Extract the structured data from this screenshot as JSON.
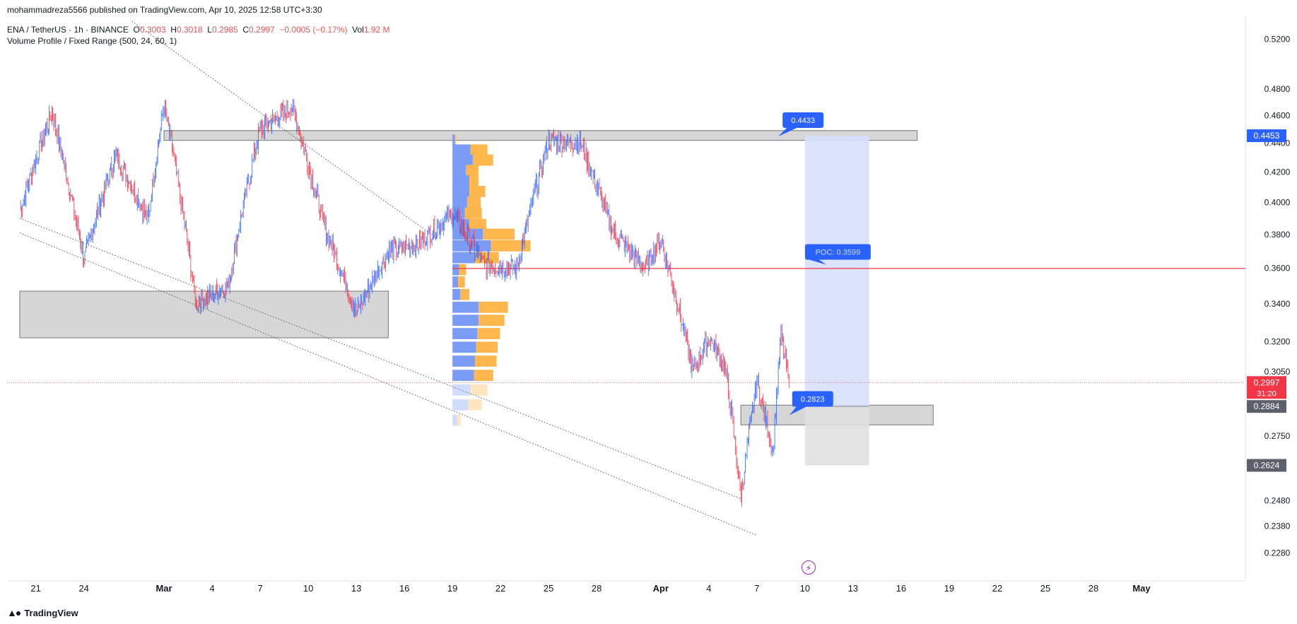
{
  "publisher_line": "mohammadreza5566 published on TradingView.com, Apr 10, 2025 12:58 UTC+3:30",
  "legend": {
    "symbol": "ENA / TetherUS · 1h · BINANCE",
    "o_label": "O",
    "o": "0.3003",
    "h_label": "H",
    "h": "0.3018",
    "l_label": "L",
    "l": "0.2985",
    "c_label": "C",
    "c": "0.2997",
    "change": "−0.0005 (−0.17%)",
    "vol_label": "Vol",
    "vol": "1.92 M",
    "indicator": "Volume Profile / Fixed Range (500, 24, 60, 1)"
  },
  "footer": {
    "brand": "TradingView"
  },
  "colors": {
    "up": "#2962ff",
    "down": "#f23645",
    "zone": "#cfcfcf",
    "profile_up": "#7b9cf5",
    "profile_down": "#ffb74d",
    "poc": "#f23645",
    "target": "#d6e0fb",
    "stop": "#e0e0e0",
    "label_blue": "#2962ff",
    "last_price": "#f23645",
    "gray_tag": "#5d606b"
  },
  "chart_data": {
    "type": "candlestick",
    "title": "ENA / TetherUS · 1h · BINANCE",
    "y_scale": "log",
    "y_ticks": [
      "0.5200",
      "0.4800",
      "0.4600",
      "0.4400",
      "0.4200",
      "0.4000",
      "0.3800",
      "0.3600",
      "0.3400",
      "0.3200",
      "0.3050",
      "0.2750",
      "0.2480",
      "0.2380",
      "0.2280"
    ],
    "ylim": [
      0.218,
      0.54
    ],
    "x_ticks": [
      "21",
      "24",
      "Mar",
      "4",
      "7",
      "10",
      "13",
      "16",
      "19",
      "22",
      "25",
      "28",
      "Apr",
      "4",
      "7",
      "10",
      "13",
      "16",
      "19",
      "22",
      "25",
      "28",
      "May"
    ],
    "x_domain": [
      "Feb 20, 2025",
      "May 2, 2025"
    ],
    "last_price": "0.2997",
    "countdown": "31:20",
    "price_tags": [
      "0.4453",
      "0.2884",
      "0.2624"
    ],
    "callouts": [
      {
        "text": "0.4433"
      },
      {
        "text": "POC: 0.3599"
      },
      {
        "text": "0.2823"
      }
    ],
    "key_points": [
      {
        "date": "Feb 20",
        "price": 0.395
      },
      {
        "date": "Feb 22",
        "price": 0.462
      },
      {
        "date": "Feb 24",
        "price": 0.365
      },
      {
        "date": "Feb 26",
        "price": 0.432
      },
      {
        "date": "Feb 28",
        "price": 0.389
      },
      {
        "date": "Mar 2",
        "price": 0.468
      },
      {
        "date": "Mar 4",
        "price": 0.34
      },
      {
        "date": "Mar 6",
        "price": 0.35
      },
      {
        "date": "Mar 8",
        "price": 0.45
      },
      {
        "date": "Mar 10",
        "price": 0.466
      },
      {
        "date": "Mar 12",
        "price": 0.385
      },
      {
        "date": "Mar 14",
        "price": 0.335
      },
      {
        "date": "Mar 16",
        "price": 0.37
      },
      {
        "date": "Mar 18",
        "price": 0.375
      },
      {
        "date": "Mar 20",
        "price": 0.393
      },
      {
        "date": "Mar 22",
        "price": 0.362
      },
      {
        "date": "Mar 24",
        "price": 0.36
      },
      {
        "date": "Mar 26",
        "price": 0.442
      },
      {
        "date": "Mar 28",
        "price": 0.44
      },
      {
        "date": "Mar 30",
        "price": 0.382
      },
      {
        "date": "Apr 1",
        "price": 0.36
      },
      {
        "date": "Apr 2",
        "price": 0.378
      },
      {
        "date": "Apr 4",
        "price": 0.305
      },
      {
        "date": "Apr 5",
        "price": 0.322
      },
      {
        "date": "Apr 6",
        "price": 0.308
      },
      {
        "date": "Apr 7",
        "price": 0.25
      },
      {
        "date": "Apr 8",
        "price": 0.3
      },
      {
        "date": "Apr 9",
        "price": 0.268
      },
      {
        "date": "Apr 9.5",
        "price": 0.324
      },
      {
        "date": "Apr 10",
        "price": 0.2997
      }
    ],
    "volume_profile": {
      "range": "Mar 20 – Mar 31",
      "poc": 0.3599,
      "rows": [
        {
          "price": 0.442,
          "up": 2,
          "down": 1
        },
        {
          "price": 0.435,
          "up": 16,
          "down": 15
        },
        {
          "price": 0.428,
          "up": 18,
          "down": 18
        },
        {
          "price": 0.421,
          "up": 12,
          "down": 11
        },
        {
          "price": 0.414,
          "up": 15,
          "down": 8
        },
        {
          "price": 0.407,
          "up": 15,
          "down": 14
        },
        {
          "price": 0.4,
          "up": 13,
          "down": 12
        },
        {
          "price": 0.393,
          "up": 11,
          "down": 15
        },
        {
          "price": 0.386,
          "up": 15,
          "down": 15
        },
        {
          "price": 0.38,
          "up": 27,
          "down": 28
        },
        {
          "price": 0.373,
          "up": 34,
          "down": 35
        },
        {
          "price": 0.366,
          "up": 20,
          "down": 21
        },
        {
          "price": 0.359,
          "up": 6,
          "down": 6
        },
        {
          "price": 0.352,
          "up": 5,
          "down": 6
        },
        {
          "price": 0.345,
          "up": 7,
          "down": 8
        },
        {
          "price": 0.338,
          "up": 23,
          "down": 26
        },
        {
          "price": 0.331,
          "up": 23,
          "down": 23
        },
        {
          "price": 0.324,
          "up": 22,
          "down": 20
        },
        {
          "price": 0.317,
          "up": 21,
          "down": 19
        },
        {
          "price": 0.31,
          "up": 20,
          "down": 19
        },
        {
          "price": 0.303,
          "up": 19,
          "down": 17
        },
        {
          "price": 0.296,
          "up": 16,
          "down": 15
        },
        {
          "price": 0.289,
          "up": 14,
          "down": 12
        },
        {
          "price": 0.282,
          "up": 4,
          "down": 3
        }
      ]
    },
    "zones": [
      {
        "name": "resistance",
        "from": "Mar 2",
        "to": "Apr 18",
        "low": 0.442,
        "high": 0.449
      },
      {
        "name": "support-left",
        "from": "Feb 20",
        "to": "Mar 16",
        "low": 0.322,
        "high": 0.347
      },
      {
        "name": "support-right",
        "from": "Apr 7",
        "to": "Apr 19",
        "low": 0.28,
        "high": 0.289
      }
    ],
    "position": {
      "entry": 0.2884,
      "target": 0.4453,
      "stop": 0.2624,
      "from": "Apr 11",
      "to": "Apr 15"
    }
  }
}
